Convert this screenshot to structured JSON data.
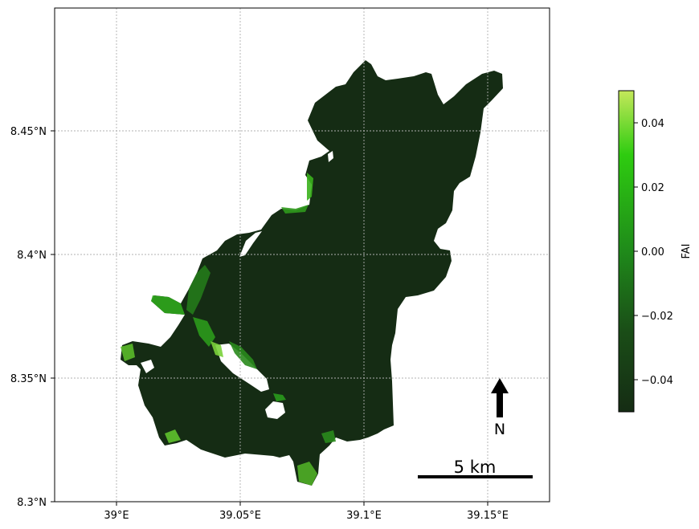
{
  "map": {
    "x_ticks": [
      {
        "value": 39.0,
        "label": "39°E"
      },
      {
        "value": 39.05,
        "label": "39.05°E"
      },
      {
        "value": 39.1,
        "label": "39.1°E"
      },
      {
        "value": 39.15,
        "label": "39.15°E"
      }
    ],
    "y_ticks": [
      {
        "value": 8.3,
        "label": "8.3°N"
      },
      {
        "value": 8.35,
        "label": "8.35°N"
      },
      {
        "value": 8.4,
        "label": "8.4°N"
      },
      {
        "value": 8.45,
        "label": "8.45°N"
      }
    ],
    "xlim": [
      38.975,
      39.175
    ],
    "ylim": [
      8.3,
      8.5
    ],
    "grid": true,
    "water_color": "#152c14",
    "scale_bar": {
      "label": "5 km",
      "length_km": 5
    },
    "north_arrow": {
      "label": "N"
    }
  },
  "colorbar": {
    "label": "FAI",
    "range": [
      -0.05,
      0.05
    ],
    "ticks": [
      {
        "value": -0.04,
        "label": "−0.04"
      },
      {
        "value": -0.02,
        "label": "−0.02"
      },
      {
        "value": 0.0,
        "label": "0.00"
      },
      {
        "value": 0.02,
        "label": "0.02"
      },
      {
        "value": 0.04,
        "label": "0.04"
      }
    ],
    "colors": [
      "#152c14",
      "#1e6b1a",
      "#22a81a",
      "#2ecc10",
      "#c4e85a"
    ]
  }
}
